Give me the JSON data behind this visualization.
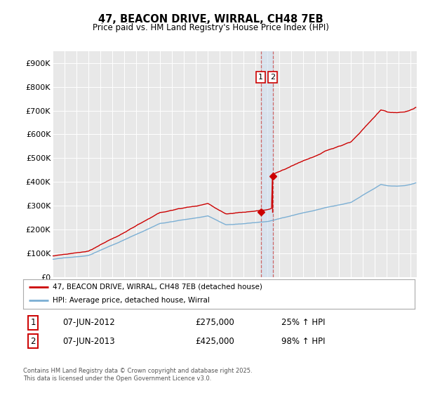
{
  "title": "47, BEACON DRIVE, WIRRAL, CH48 7EB",
  "subtitle": "Price paid vs. HM Land Registry's House Price Index (HPI)",
  "ylim": [
    0,
    950000
  ],
  "yticks": [
    0,
    100000,
    200000,
    300000,
    400000,
    500000,
    600000,
    700000,
    800000,
    900000
  ],
  "ytick_labels": [
    "£0",
    "£100K",
    "£200K",
    "£300K",
    "£400K",
    "£500K",
    "£600K",
    "£700K",
    "£800K",
    "£900K"
  ],
  "red_line_color": "#cc0000",
  "blue_line_color": "#7bafd4",
  "vline_color": "#cc6666",
  "transaction1_year": 2012.44,
  "transaction1_price": 275000,
  "transaction2_year": 2013.44,
  "transaction2_price": 425000,
  "legend_entry1": "47, BEACON DRIVE, WIRRAL, CH48 7EB (detached house)",
  "legend_entry2": "HPI: Average price, detached house, Wirral",
  "table_row1": [
    "1",
    "07-JUN-2012",
    "£275,000",
    "25% ↑ HPI"
  ],
  "table_row2": [
    "2",
    "07-JUN-2013",
    "£425,000",
    "98% ↑ HPI"
  ],
  "footnote1": "Contains HM Land Registry data © Crown copyright and database right 2025.",
  "footnote2": "This data is licensed under the Open Government Licence v3.0.",
  "background_color": "#ffffff",
  "plot_bg_color": "#e8e8e8"
}
